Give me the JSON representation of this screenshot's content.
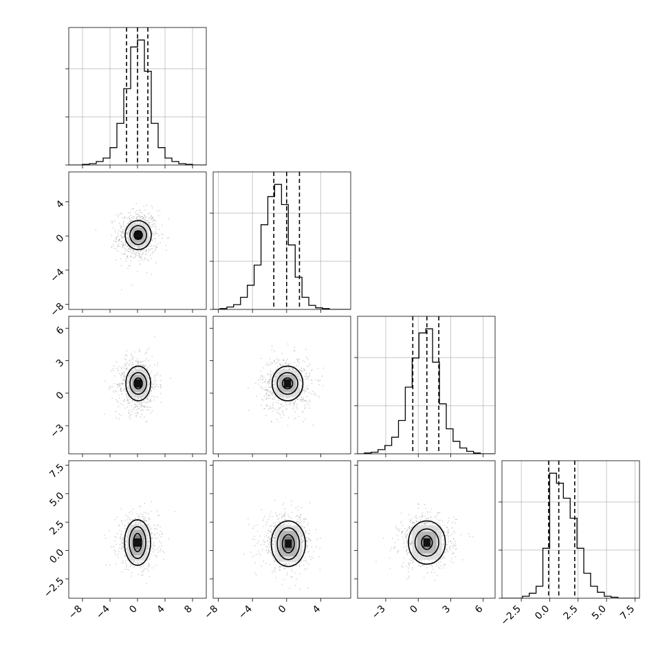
{
  "chart_data": {
    "type": "corner",
    "title": "",
    "parameters": [
      "",
      "",
      "",
      ""
    ],
    "means": [
      0.0,
      0.0,
      0.8,
      0.8
    ],
    "stds": [
      1.5,
      1.5,
      1.3,
      1.2
    ],
    "quantiles": [
      [
        -1.6,
        0.0,
        1.5
      ],
      [
        -1.5,
        0.0,
        1.5
      ],
      [
        -0.5,
        0.8,
        1.9
      ],
      [
        -0.1,
        0.8,
        2.2
      ]
    ],
    "axis_ranges": [
      [
        -10,
        10
      ],
      [
        -8.6,
        7.5
      ],
      [
        -5.6,
        7.1
      ],
      [
        -4.2,
        7.9
      ]
    ],
    "ticks": [
      [
        -8,
        -4,
        0,
        4,
        8
      ],
      [
        -8,
        -4,
        0,
        4
      ],
      [
        -3,
        0,
        3,
        6
      ],
      [
        -2.5,
        0.0,
        2.5,
        5.0,
        7.5
      ]
    ],
    "tick_labels": [
      [
        "−8",
        "−4",
        "0",
        "4",
        "8"
      ],
      [
        "−8",
        "−4",
        "0",
        "4"
      ],
      [
        "−3",
        "0",
        "3",
        "6"
      ],
      [
        "−2.5",
        "0.0",
        "2.5",
        "5.0",
        "7.5"
      ]
    ],
    "histograms": [
      {
        "param": 0,
        "bin_edges": [
          -10,
          -9,
          -8,
          -7,
          -6,
          -5,
          -4,
          -3,
          -2,
          -1,
          0,
          1,
          2,
          3,
          4,
          5,
          6,
          7,
          8,
          9,
          10
        ],
        "counts": [
          0,
          0,
          1,
          2,
          5,
          10,
          25,
          60,
          110,
          170,
          180,
          135,
          60,
          25,
          10,
          5,
          2,
          1,
          0,
          0
        ]
      },
      {
        "param": 1,
        "bin_edges": [
          -8.6,
          -7.8,
          -7.0,
          -6.2,
          -5.4,
          -4.6,
          -3.8,
          -3.0,
          -2.2,
          -1.4,
          -0.6,
          0.2,
          1.0,
          1.8,
          2.6,
          3.4,
          4.2,
          5.0,
          5.8,
          6.6,
          7.4
        ],
        "counts": [
          0,
          1,
          3,
          6,
          15,
          30,
          55,
          105,
          140,
          155,
          130,
          80,
          40,
          15,
          5,
          2,
          1,
          0,
          0,
          0
        ]
      },
      {
        "param": 2,
        "bin_edges": [
          -5.6,
          -4.97,
          -4.34,
          -3.71,
          -3.08,
          -2.45,
          -1.82,
          -1.19,
          -0.56,
          0.07,
          0.7,
          1.33,
          1.96,
          2.59,
          3.22,
          3.85,
          4.48,
          5.11,
          5.74,
          6.37,
          7.0
        ],
        "counts": [
          0,
          1,
          2,
          5,
          10,
          20,
          40,
          80,
          115,
          145,
          150,
          110,
          60,
          30,
          15,
          7,
          3,
          1,
          0,
          0
        ]
      },
      {
        "param": 3,
        "bin_edges": [
          -4.2,
          -3.6,
          -3.0,
          -2.4,
          -1.8,
          -1.2,
          -0.6,
          0.0,
          0.6,
          1.2,
          1.8,
          2.4,
          3.0,
          3.6,
          4.2,
          4.8,
          5.4,
          6.0,
          6.6,
          7.2,
          7.8
        ],
        "counts": [
          0,
          0,
          0,
          2,
          5,
          12,
          50,
          125,
          115,
          100,
          80,
          50,
          25,
          12,
          6,
          2,
          1,
          0,
          0,
          0
        ]
      }
    ],
    "contours": [
      {
        "row": 1,
        "col": 0,
        "center": [
          0.1,
          0.1
        ],
        "levels_std": [
          [
            0.6,
            0.5
          ],
          [
            1.2,
            1.1
          ],
          [
            1.9,
            1.7
          ]
        ]
      },
      {
        "row": 2,
        "col": 0,
        "center": [
          0.1,
          0.9
        ],
        "levels_std": [
          [
            0.6,
            0.5
          ],
          [
            1.2,
            1.0
          ],
          [
            1.8,
            1.6
          ]
        ]
      },
      {
        "row": 2,
        "col": 1,
        "center": [
          0.1,
          0.9
        ],
        "levels_std": [
          [
            0.6,
            0.5
          ],
          [
            1.2,
            1.0
          ],
          [
            1.8,
            1.6
          ]
        ]
      },
      {
        "row": 3,
        "col": 0,
        "center": [
          0.0,
          0.7
        ],
        "levels_std": [
          [
            0.6,
            0.8
          ],
          [
            1.2,
            1.4
          ],
          [
            1.9,
            2.0
          ]
        ]
      },
      {
        "row": 3,
        "col": 1,
        "center": [
          0.2,
          0.6
        ],
        "levels_std": [
          [
            0.7,
            0.8
          ],
          [
            1.3,
            1.4
          ],
          [
            2.0,
            2.0
          ]
        ]
      },
      {
        "row": 3,
        "col": 2,
        "center": [
          0.8,
          0.7
        ],
        "levels_std": [
          [
            0.5,
            0.6
          ],
          [
            1.1,
            1.2
          ],
          [
            1.7,
            1.9
          ]
        ]
      }
    ],
    "grid": true,
    "colors": {
      "line": "#000000",
      "grid": "#b0b0b0",
      "points": "#a0a0a0"
    }
  }
}
